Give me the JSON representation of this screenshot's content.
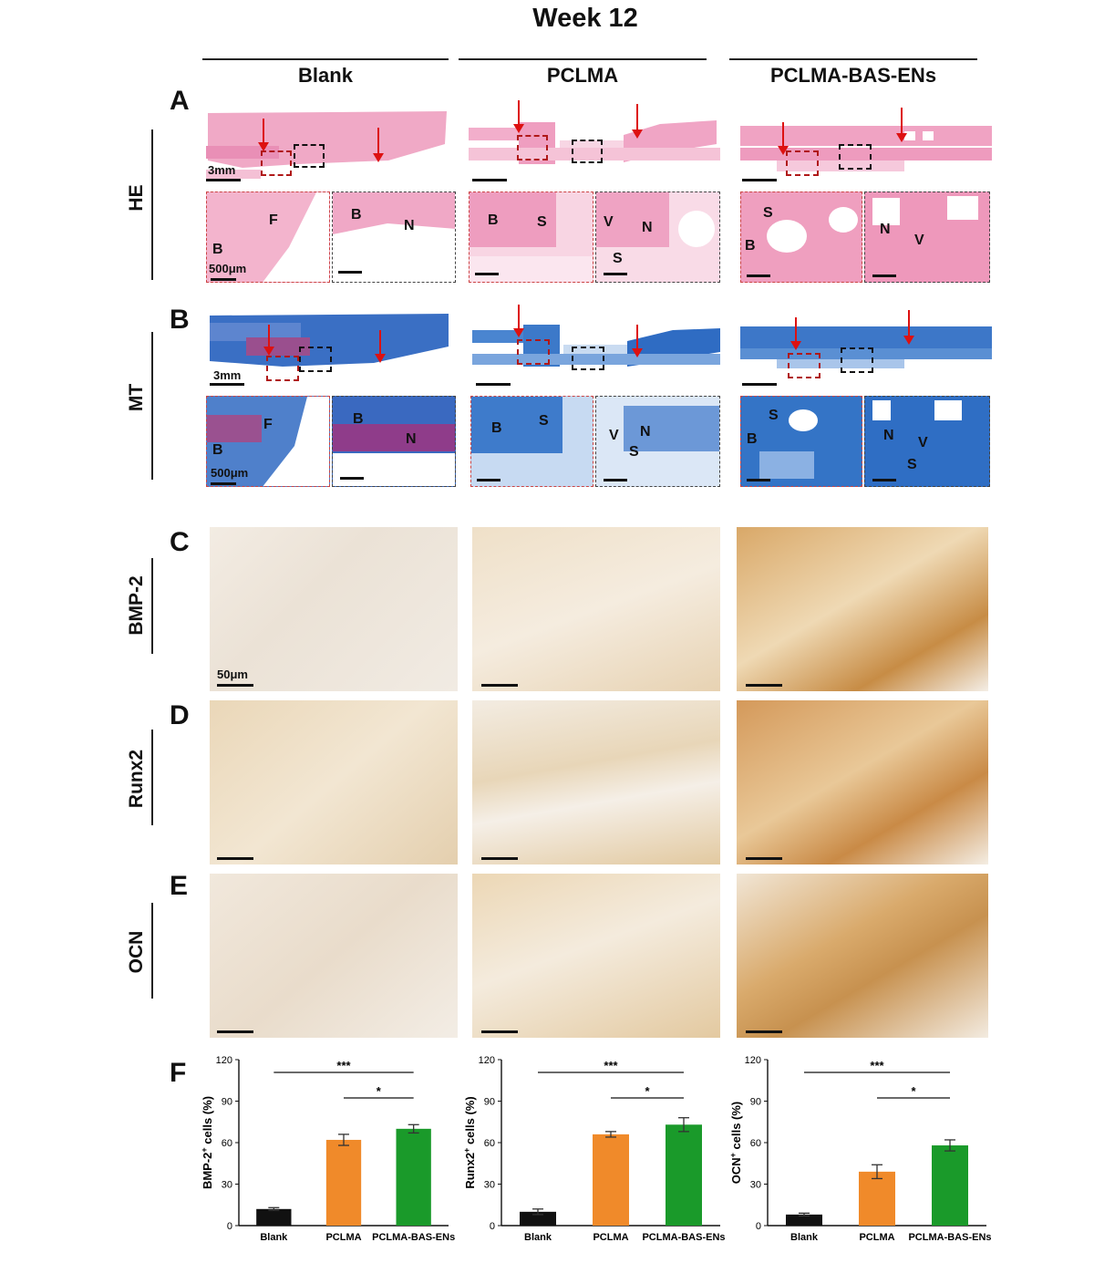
{
  "figure": {
    "title": "Week 12",
    "columns": [
      "Blank",
      "PCLMA",
      "PCLMA-BAS-ENs"
    ],
    "panel_letters": [
      "A",
      "B",
      "C",
      "D",
      "E",
      "F"
    ],
    "row_labels": [
      "HE",
      "MT",
      "BMP-2",
      "Runx2",
      "OCN"
    ],
    "scale_labels": {
      "overview": "3mm",
      "zoom": "500μm",
      "ihc": "50μm"
    },
    "region_labels": {
      "he": [
        [
          "F",
          "B"
        ],
        [
          "B",
          "N"
        ],
        [
          "B",
          "S"
        ],
        [
          "V",
          "N",
          "S"
        ],
        [
          "S",
          "B"
        ],
        [
          "N",
          "V"
        ]
      ],
      "mt": [
        [
          "F",
          "B"
        ],
        [
          "B",
          "N"
        ],
        [
          "B",
          "S"
        ],
        [
          "V",
          "N",
          "S"
        ],
        [
          "S",
          "B"
        ],
        [
          "N",
          "V",
          "S"
        ]
      ]
    },
    "colors": {
      "he_pink": "#ee9ec0",
      "mt_blue": "#3f78c9",
      "ihc_brown": "#c88a3a",
      "blank_bar": "#111111",
      "pclma_bar": "#f08a2a",
      "bas_bar": "#1a9a2a",
      "arrow": "#dd1111"
    }
  },
  "chart_data": [
    {
      "type": "bar",
      "ylabel": "BMP-2+ cells (%)",
      "ylabel_main": "BMP-2",
      "ylabel_sup": "+",
      "ylabel_tail": " cells (%)",
      "categories": [
        "Blank",
        "PCLMA",
        "PCLMA-BAS-ENs"
      ],
      "values": [
        12,
        62,
        70
      ],
      "errors": [
        1,
        4,
        3
      ],
      "ylim": [
        0,
        120
      ],
      "yticks": [
        0,
        30,
        60,
        90,
        120
      ],
      "significance": [
        {
          "from": 0,
          "to": 2,
          "label": "***"
        },
        {
          "from": 1,
          "to": 2,
          "label": "*"
        }
      ]
    },
    {
      "type": "bar",
      "ylabel": "Runx2+ cells (%)",
      "ylabel_main": "Runx2",
      "ylabel_sup": "+",
      "ylabel_tail": " cells (%)",
      "categories": [
        "Blank",
        "PCLMA",
        "PCLMA-BAS-ENs"
      ],
      "values": [
        10,
        66,
        73
      ],
      "errors": [
        2,
        2,
        5
      ],
      "ylim": [
        0,
        120
      ],
      "yticks": [
        0,
        30,
        60,
        90,
        120
      ],
      "significance": [
        {
          "from": 0,
          "to": 2,
          "label": "***"
        },
        {
          "from": 1,
          "to": 2,
          "label": "*"
        }
      ]
    },
    {
      "type": "bar",
      "ylabel": "OCN+ cells (%)",
      "ylabel_main": "OCN",
      "ylabel_sup": "+",
      "ylabel_tail": " cells  (%)",
      "categories": [
        "Blank",
        "PCLMA",
        "PCLMA-BAS-ENs"
      ],
      "values": [
        8,
        39,
        58
      ],
      "errors": [
        1,
        5,
        4
      ],
      "ylim": [
        0,
        120
      ],
      "yticks": [
        0,
        30,
        60,
        90,
        120
      ],
      "significance": [
        {
          "from": 0,
          "to": 2,
          "label": "***"
        },
        {
          "from": 1,
          "to": 2,
          "label": "*"
        }
      ]
    }
  ]
}
